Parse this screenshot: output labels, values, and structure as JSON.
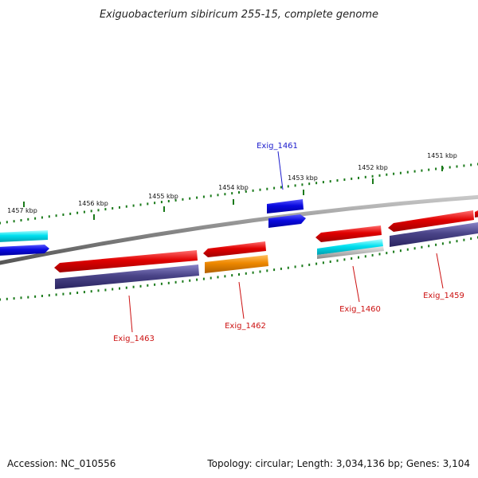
{
  "title": "Exiguobacterium sibiricum 255-15, complete genome",
  "footer": {
    "accession": "Accession: NC_010556",
    "summary": "Topology: circular; Length: 3,034,136 bp; Genes: 3,104"
  },
  "ticks": [
    {
      "label": "1457 kbp"
    },
    {
      "label": "1456 kbp"
    },
    {
      "label": "1455 kbp"
    },
    {
      "label": "1454 kbp"
    },
    {
      "label": "1453 kbp"
    },
    {
      "label": "1452 kbp"
    },
    {
      "label": "1451 kbp"
    }
  ],
  "gene_labels": [
    {
      "text": "Exig_1461",
      "color": "#1a1acc"
    },
    {
      "text": "Exig_1463",
      "color": "#cc1111"
    },
    {
      "text": "Exig_1462",
      "color": "#cc1111"
    },
    {
      "text": "Exig_1460",
      "color": "#cc1111"
    },
    {
      "text": "Exig_1459",
      "color": "#cc1111"
    }
  ],
  "colors": {
    "backbone": "#888888",
    "tick": "#1a7a1a",
    "cds_red": "#e00000",
    "cds_blue": "#0a0ae0",
    "cds_cyan": "#00d8e8",
    "cds_purple": "#4a4488",
    "cds_orange": "#ee8800",
    "cds_grey": "#b8b8b8"
  }
}
